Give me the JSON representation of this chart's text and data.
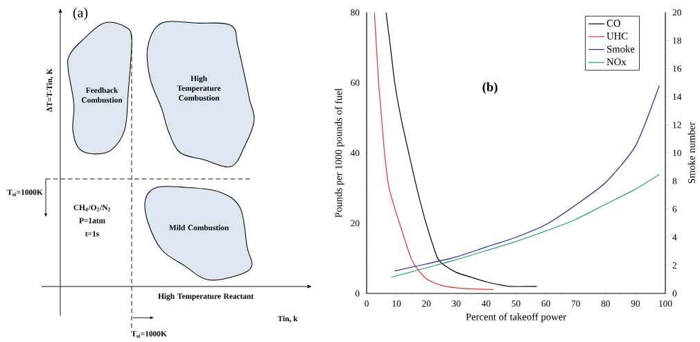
{
  "chart_data": [
    {
      "type": "other",
      "title": "(a)",
      "xlabel": "Tin, k",
      "ylabel": "ΔT=T-Tin, K",
      "annotations": [
        "Feedback Combustion",
        "High Temperature Combustion",
        "Mild Combustion",
        "High Temperature Reactant",
        "CH$_{4}$/O$_{2}$/N$_{2}$",
        "P=1atm",
        "t=1s",
        "T$_{si}$=1000K",
        "T$_{si}$=1000K"
      ]
    },
    {
      "type": "line",
      "title": "(b)",
      "xlabel": "Percent of takeoff power",
      "ylabel": "Pounds per 1000 pounds of fuel",
      "y2label": "Smoke number",
      "xlim": [
        0,
        100
      ],
      "xticks": [
        0,
        10,
        20,
        30,
        40,
        50,
        60,
        70,
        80,
        90,
        100
      ],
      "ylim": [
        0,
        80
      ],
      "yticks": [
        0,
        20,
        40,
        60,
        80
      ],
      "y2lim": [
        0,
        20
      ],
      "y2ticks": [
        0,
        2,
        4,
        6,
        8,
        10,
        12,
        14,
        16,
        18,
        20
      ],
      "legend": "top right",
      "series": [
        {
          "name": "CO",
          "color": "#000000",
          "x": [
            6.5,
            8,
            9.4,
            11.5,
            14.1,
            16.8,
            19.9,
            23.8,
            27,
            30,
            35,
            40,
            45,
            48,
            57
          ],
          "values": [
            80,
            70,
            60,
            50,
            40,
            30,
            20,
            10,
            7.5,
            6,
            4.6,
            3.3,
            2.4,
            2,
            2
          ]
        },
        {
          "name": "UHC",
          "color": "#e03030",
          "x": [
            2.6,
            3.3,
            4,
            5,
            6,
            7.5,
            11,
            14.9,
            17,
            20.3,
            25,
            30,
            35,
            42.5
          ],
          "values": [
            80,
            70,
            60,
            50,
            40,
            30,
            20,
            10,
            7,
            4,
            2.3,
            1.6,
            1.3,
            1.1
          ]
        },
        {
          "name": "Smoke",
          "color": "#2424a0",
          "axis": "y2",
          "x": [
            9.4,
            20,
            30,
            40,
            50,
            60,
            70,
            80,
            90,
            98
          ],
          "values": [
            1.6,
            2.1,
            2.6,
            3.3,
            4,
            4.9,
            6.3,
            7.9,
            10.5,
            14.8
          ]
        },
        {
          "name": "NOx",
          "color": "#2a9d8f",
          "x": [
            8.2,
            20,
            30,
            40,
            50,
            60,
            70,
            80,
            90,
            98
          ],
          "values": [
            4.6,
            7.3,
            9.6,
            12.2,
            14.8,
            17.8,
            21.1,
            25.4,
            29.7,
            33.9
          ]
        }
      ]
    }
  ]
}
